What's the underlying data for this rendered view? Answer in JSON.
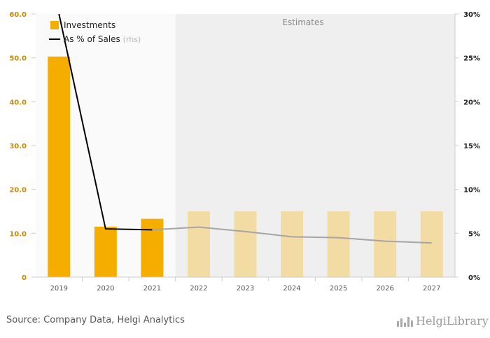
{
  "chart_data": {
    "type": "bar",
    "categories": [
      "2019",
      "2020",
      "2021",
      "2022",
      "2023",
      "2024",
      "2025",
      "2026",
      "2027"
    ],
    "series": [
      {
        "name": "Investments",
        "axis": "left",
        "values": [
          50.3,
          11.5,
          13.3,
          15.0,
          15.0,
          15.0,
          15.0,
          15.0,
          15.0
        ],
        "estimated": [
          false,
          false,
          false,
          true,
          true,
          true,
          true,
          true,
          true
        ],
        "color": "#f5ad00",
        "estimate_color": "#f3dca3"
      },
      {
        "name": "As % of Sales",
        "name_suffix": "(rhs)",
        "type": "line",
        "axis": "right",
        "values": [
          30.0,
          5.5,
          5.4,
          5.7,
          5.2,
          4.6,
          4.5,
          4.1,
          3.9
        ],
        "unit": "%",
        "color": "#000000",
        "estimate_color": "#a5a5a5"
      }
    ],
    "yleft": {
      "ylim": [
        0,
        60
      ],
      "ticks": [
        "0",
        "10.0",
        "20.0",
        "30.0",
        "40.0",
        "50.0",
        "60.0"
      ]
    },
    "yright": {
      "ylim": [
        0,
        30
      ],
      "ticks": [
        "0%",
        "5%",
        "10%",
        "15%",
        "20%",
        "25%",
        "30%"
      ]
    },
    "estimates_label": "Estimates",
    "estimates_start": "2022",
    "title": "",
    "xlabel": "",
    "ylabel": ""
  },
  "footer": {
    "source": "Source: Company Data, Helgi Analytics",
    "logo_text": "HelgiLibrary"
  }
}
